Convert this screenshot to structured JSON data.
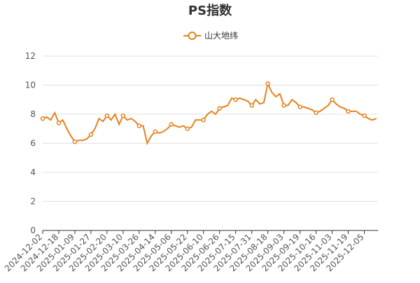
{
  "chart_data": {
    "type": "line",
    "title": "PS指数",
    "categories": [
      "2024-12-02",
      null,
      null,
      null,
      "2024-12-18",
      null,
      null,
      null,
      "2025-01-09",
      null,
      null,
      null,
      "2025-01-27",
      null,
      null,
      null,
      "2025-02-20",
      null,
      null,
      null,
      "2025-03-10",
      null,
      null,
      null,
      "2025-03-26",
      null,
      null,
      null,
      "2025-04-14",
      null,
      null,
      null,
      "2025-05-06",
      null,
      null,
      null,
      "2025-05-22",
      null,
      null,
      null,
      "2025-06-10",
      null,
      null,
      null,
      "2025-06-26",
      null,
      null,
      null,
      "2025-07-15",
      null,
      null,
      null,
      "2025-07-31",
      null,
      null,
      null,
      "2025-08-18",
      null,
      null,
      null,
      "2025-09-03",
      null,
      null,
      null,
      "2025-09-19",
      null,
      null,
      null,
      "2025-10-16",
      null,
      null,
      null,
      "2025-11-03",
      null,
      null,
      null,
      "2025-11-19",
      null,
      null,
      null,
      "2025-12-05",
      null,
      null,
      null
    ],
    "series": [
      {
        "name": "山大地纬",
        "color": "#e5821f",
        "values": [
          7.7,
          7.8,
          7.6,
          8.1,
          7.4,
          7.6,
          7.0,
          6.5,
          6.1,
          6.2,
          6.2,
          6.3,
          6.6,
          7.0,
          7.7,
          7.5,
          7.9,
          7.6,
          8.0,
          7.3,
          7.9,
          7.6,
          7.7,
          7.5,
          7.2,
          7.2,
          6.0,
          6.5,
          6.8,
          6.7,
          6.8,
          7.0,
          7.3,
          7.2,
          7.1,
          7.2,
          7.0,
          7.1,
          7.6,
          7.6,
          7.6,
          8.0,
          8.2,
          8.0,
          8.4,
          8.5,
          8.6,
          9.1,
          9.0,
          9.1,
          9.0,
          8.9,
          8.6,
          9.0,
          8.7,
          8.8,
          10.1,
          9.5,
          9.2,
          9.4,
          8.6,
          8.6,
          9.0,
          8.8,
          8.5,
          8.5,
          8.4,
          8.3,
          8.1,
          8.2,
          8.4,
          8.6,
          9.0,
          8.7,
          8.5,
          8.4,
          8.2,
          8.2,
          8.2,
          8.0,
          7.9,
          7.7,
          7.6,
          7.7
        ]
      }
    ],
    "ylim": [
      0,
      12
    ],
    "yticks": [
      0,
      2,
      4,
      6,
      8,
      10,
      12
    ],
    "grid": true
  }
}
